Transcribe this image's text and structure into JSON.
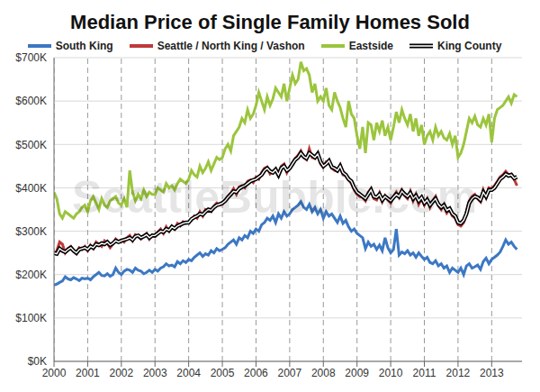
{
  "chart_data": {
    "type": "line",
    "title": "Median Price of Single Family Homes Sold",
    "watermark": "SeattleBubble.com",
    "legend": "top",
    "grid": true,
    "x": [
      2000,
      2000.083,
      2000.167,
      2000.25,
      2000.333,
      2000.417,
      2000.5,
      2000.583,
      2000.667,
      2000.75,
      2000.833,
      2000.917,
      2001,
      2001.083,
      2001.167,
      2001.25,
      2001.333,
      2001.417,
      2001.5,
      2001.583,
      2001.667,
      2001.75,
      2001.833,
      2001.917,
      2002,
      2002.083,
      2002.167,
      2002.25,
      2002.333,
      2002.417,
      2002.5,
      2002.583,
      2002.667,
      2002.75,
      2002.833,
      2002.917,
      2003,
      2003.083,
      2003.167,
      2003.25,
      2003.333,
      2003.417,
      2003.5,
      2003.583,
      2003.667,
      2003.75,
      2003.833,
      2003.917,
      2004,
      2004.083,
      2004.167,
      2004.25,
      2004.333,
      2004.417,
      2004.5,
      2004.583,
      2004.667,
      2004.75,
      2004.833,
      2004.917,
      2005,
      2005.083,
      2005.167,
      2005.25,
      2005.333,
      2005.417,
      2005.5,
      2005.583,
      2005.667,
      2005.75,
      2005.833,
      2005.917,
      2006,
      2006.083,
      2006.167,
      2006.25,
      2006.333,
      2006.417,
      2006.5,
      2006.583,
      2006.667,
      2006.75,
      2006.833,
      2006.917,
      2007,
      2007.083,
      2007.167,
      2007.25,
      2007.333,
      2007.417,
      2007.5,
      2007.583,
      2007.667,
      2007.75,
      2007.833,
      2007.917,
      2008,
      2008.083,
      2008.167,
      2008.25,
      2008.333,
      2008.417,
      2008.5,
      2008.583,
      2008.667,
      2008.75,
      2008.833,
      2008.917,
      2009,
      2009.083,
      2009.167,
      2009.25,
      2009.333,
      2009.417,
      2009.5,
      2009.583,
      2009.667,
      2009.75,
      2009.833,
      2009.917,
      2010,
      2010.083,
      2010.167,
      2010.25,
      2010.333,
      2010.417,
      2010.5,
      2010.583,
      2010.667,
      2010.75,
      2010.833,
      2010.917,
      2011,
      2011.083,
      2011.167,
      2011.25,
      2011.333,
      2011.417,
      2011.5,
      2011.583,
      2011.667,
      2011.75,
      2011.833,
      2011.917,
      2012,
      2012.083,
      2012.167,
      2012.25,
      2012.333,
      2012.417,
      2012.5,
      2012.583,
      2012.667,
      2012.75,
      2012.833,
      2012.917,
      2013,
      2013.083,
      2013.167,
      2013.25,
      2013.333,
      2013.417,
      2013.5,
      2013.583,
      2013.667,
      2013.75
    ],
    "xlim": [
      2000,
      2013.9
    ],
    "xticks": [
      2000,
      2001,
      2002,
      2003,
      2004,
      2005,
      2006,
      2007,
      2008,
      2009,
      2010,
      2011,
      2012,
      2013
    ],
    "ylim": [
      0,
      700
    ],
    "yticks": [
      {
        "value": 0,
        "label": "$0K"
      },
      {
        "value": 100,
        "label": "$100K"
      },
      {
        "value": 200,
        "label": "$200K"
      },
      {
        "value": 300,
        "label": "$300K"
      },
      {
        "value": 400,
        "label": "$400K"
      },
      {
        "value": 500,
        "label": "$500K"
      },
      {
        "value": 600,
        "label": "$600K"
      },
      {
        "value": 700,
        "label": "$700K"
      }
    ],
    "series": [
      {
        "name": "South King",
        "color": "#3c78c3",
        "values": [
          176,
          178,
          182,
          185,
          195,
          190,
          188,
          193,
          190,
          186,
          192,
          190,
          192,
          188,
          195,
          200,
          205,
          198,
          197,
          202,
          196,
          200,
          215,
          205,
          200,
          208,
          212,
          210,
          205,
          215,
          210,
          208,
          202,
          205,
          210,
          205,
          212,
          208,
          215,
          218,
          225,
          220,
          222,
          218,
          230,
          225,
          232,
          228,
          235,
          232,
          240,
          245,
          250,
          242,
          248,
          245,
          255,
          250,
          260,
          255,
          258,
          262,
          270,
          275,
          280,
          270,
          285,
          280,
          290,
          285,
          300,
          295,
          305,
          300,
          315,
          320,
          330,
          325,
          335,
          320,
          340,
          330,
          345,
          335,
          340,
          350,
          355,
          360,
          368,
          355,
          350,
          362,
          345,
          355,
          340,
          350,
          330,
          345,
          335,
          340,
          330,
          320,
          335,
          318,
          325,
          310,
          300,
          305,
          295,
          290,
          285,
          260,
          275,
          265,
          270,
          258,
          268,
          255,
          285,
          262,
          250,
          258,
          305,
          245,
          252,
          248,
          255,
          245,
          250,
          240,
          250,
          242,
          235,
          240,
          228,
          225,
          232,
          220,
          225,
          215,
          220,
          205,
          215,
          210,
          205,
          215,
          200,
          220,
          225,
          215,
          218,
          222,
          212,
          230,
          238,
          225,
          235,
          240,
          245,
          252,
          265,
          280,
          270,
          275,
          265,
          258
        ]
      },
      {
        "name": "Seattle / North King / Vashon",
        "color": "#c0393b",
        "values": [
          245,
          255,
          275,
          270,
          250,
          260,
          265,
          255,
          248,
          262,
          258,
          265,
          255,
          268,
          260,
          275,
          270,
          265,
          278,
          272,
          262,
          270,
          282,
          276,
          280,
          275,
          285,
          290,
          278,
          292,
          288,
          282,
          290,
          295,
          282,
          292,
          288,
          298,
          305,
          295,
          310,
          300,
          312,
          305,
          318,
          312,
          322,
          318,
          322,
          325,
          335,
          330,
          345,
          335,
          350,
          348,
          345,
          358,
          365,
          360,
          362,
          372,
          380,
          388,
          398,
          385,
          402,
          405,
          400,
          415,
          418,
          412,
          425,
          420,
          435,
          445,
          448,
          432,
          438,
          440,
          428,
          450,
          455,
          435,
          448,
          458,
          468,
          475,
          485,
          470,
          465,
          490,
          470,
          468,
          480,
          455,
          448,
          460,
          458,
          445,
          440,
          438,
          452,
          430,
          428,
          418,
          410,
          395,
          385,
          380,
          378,
          370,
          390,
          398,
          375,
          372,
          388,
          368,
          382,
          372,
          365,
          380,
          390,
          378,
          395,
          382,
          375,
          392,
          370,
          385,
          362,
          375,
          360,
          375,
          355,
          370,
          380,
          358,
          350,
          362,
          342,
          350,
          335,
          330,
          315,
          312,
          320,
          345,
          370,
          380,
          385,
          375,
          368,
          395,
          378,
          400,
          398,
          405,
          415,
          425,
          430,
          438,
          430,
          432,
          420,
          405
        ]
      },
      {
        "name": "Eastside",
        "color": "#9bc53d",
        "values": [
          390,
          375,
          340,
          330,
          345,
          340,
          335,
          330,
          340,
          345,
          355,
          360,
          345,
          370,
          380,
          365,
          350,
          375,
          360,
          355,
          370,
          375,
          380,
          365,
          360,
          375,
          355,
          440,
          390,
          370,
          385,
          375,
          395,
          380,
          390,
          385,
          385,
          400,
          395,
          390,
          410,
          400,
          405,
          395,
          410,
          420,
          415,
          410,
          420,
          440,
          430,
          425,
          450,
          435,
          445,
          460,
          440,
          455,
          470,
          465,
          470,
          490,
          500,
          485,
          520,
          530,
          540,
          560,
          550,
          580,
          560,
          570,
          590,
          620,
          600,
          580,
          610,
          590,
          605,
          630,
          620,
          610,
          640,
          600,
          630,
          660,
          640,
          650,
          690,
          670,
          675,
          660,
          620,
          640,
          600,
          610,
          600,
          630,
          590,
          580,
          620,
          600,
          585,
          560,
          540,
          600,
          570,
          560,
          520,
          490,
          540,
          480,
          550,
          545,
          510,
          550,
          530,
          555,
          520,
          540,
          510,
          540,
          575,
          550,
          580,
          560,
          545,
          570,
          530,
          560,
          520,
          545,
          500,
          520,
          530,
          510,
          540,
          520,
          530,
          515,
          510,
          525,
          500,
          520,
          470,
          480,
          500,
          530,
          560,
          550,
          565,
          545,
          540,
          560,
          545,
          570,
          505,
          560,
          580,
          585,
          590,
          600,
          610,
          595,
          615,
          610
        ]
      },
      {
        "name": "King County",
        "color": "#000000",
        "line_style": "double",
        "values": [
          250,
          248,
          260,
          255,
          252,
          258,
          262,
          255,
          250,
          258,
          260,
          262,
          258,
          265,
          262,
          270,
          268,
          272,
          270,
          275,
          268,
          272,
          278,
          275,
          278,
          280,
          282,
          285,
          280,
          288,
          290,
          285,
          288,
          292,
          285,
          290,
          290,
          295,
          300,
          298,
          305,
          302,
          310,
          306,
          312,
          315,
          318,
          320,
          320,
          328,
          332,
          335,
          340,
          338,
          345,
          350,
          348,
          355,
          360,
          362,
          365,
          370,
          378,
          385,
          392,
          390,
          398,
          402,
          405,
          410,
          415,
          418,
          420,
          425,
          430,
          440,
          445,
          438,
          435,
          442,
          430,
          445,
          450,
          440,
          445,
          455,
          465,
          470,
          480,
          472,
          468,
          480,
          475,
          470,
          478,
          460,
          450,
          455,
          462,
          448,
          445,
          440,
          450,
          435,
          430,
          420,
          415,
          400,
          390,
          385,
          380,
          375,
          385,
          395,
          380,
          378,
          385,
          372,
          380,
          375,
          370,
          378,
          385,
          380,
          392,
          385,
          380,
          388,
          375,
          382,
          370,
          378,
          365,
          372,
          360,
          368,
          375,
          362,
          355,
          360,
          348,
          352,
          340,
          335,
          320,
          318,
          325,
          340,
          365,
          375,
          380,
          378,
          372,
          390,
          380,
          395,
          395,
          400,
          410,
          420,
          425,
          432,
          428,
          430,
          422,
          425
        ]
      }
    ]
  }
}
